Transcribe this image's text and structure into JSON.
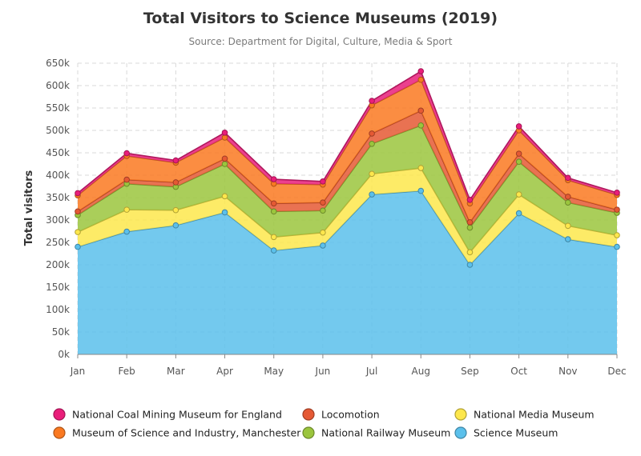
{
  "chart_data": {
    "type": "area",
    "stacked": true,
    "title": "Total Visitors to Science Museums (2019)",
    "subtitle": "Source: Department for Digital, Culture, Media & Sport",
    "ylabel": "Total visitors",
    "xlabel": "",
    "categories": [
      "Jan",
      "Feb",
      "Mar",
      "Apr",
      "May",
      "Jun",
      "Jul",
      "Aug",
      "Sep",
      "Oct",
      "Nov",
      "Dec"
    ],
    "ylim": [
      0,
      650000
    ],
    "yticks": [
      0,
      50000,
      100000,
      150000,
      200000,
      250000,
      300000,
      350000,
      400000,
      450000,
      500000,
      550000,
      600000,
      650000
    ],
    "ytick_labels": [
      "0k",
      "50k",
      "100k",
      "150k",
      "200k",
      "250k",
      "300k",
      "350k",
      "400k",
      "450k",
      "500k",
      "550k",
      "600k",
      "650k"
    ],
    "grid": true,
    "legend_position": "bottom",
    "series": [
      {
        "name": "Science Museum",
        "color": "#5bc0eb",
        "values": [
          240000,
          274000,
          288000,
          317000,
          232000,
          243000,
          357000,
          365000,
          200000,
          315000,
          257000,
          240000
        ]
      },
      {
        "name": "National Media Museum",
        "color": "#fde74c",
        "values": [
          33000,
          49000,
          34000,
          36000,
          30000,
          29000,
          46000,
          51000,
          28000,
          42000,
          30000,
          26000
        ]
      },
      {
        "name": "National Railway Museum",
        "color": "#9bc53d",
        "values": [
          38000,
          58000,
          52000,
          72000,
          57000,
          49000,
          67000,
          95000,
          55000,
          73000,
          52000,
          50000
        ]
      },
      {
        "name": "Locomotion",
        "color": "#e55934",
        "values": [
          8000,
          9000,
          10000,
          12000,
          18000,
          18000,
          23000,
          33000,
          12000,
          18000,
          13000,
          7000
        ]
      },
      {
        "name": "Museum of Science and Industry, Manchester",
        "color": "#fa7921",
        "values": [
          36000,
          53000,
          44000,
          47000,
          44000,
          40000,
          63000,
          69000,
          42000,
          52000,
          37000,
          33000
        ]
      },
      {
        "name": "National Coal Mining Museum for England",
        "color": "#e91e7a",
        "values": [
          5000,
          6000,
          5000,
          11000,
          10000,
          7000,
          10000,
          19000,
          8000,
          9000,
          5000,
          5000
        ]
      }
    ],
    "legend_order": [
      "National Coal Mining Museum for England",
      "Locomotion",
      "National Media Museum",
      "Museum of Science and Industry, Manchester",
      "National Railway Museum",
      "Science Museum"
    ]
  }
}
